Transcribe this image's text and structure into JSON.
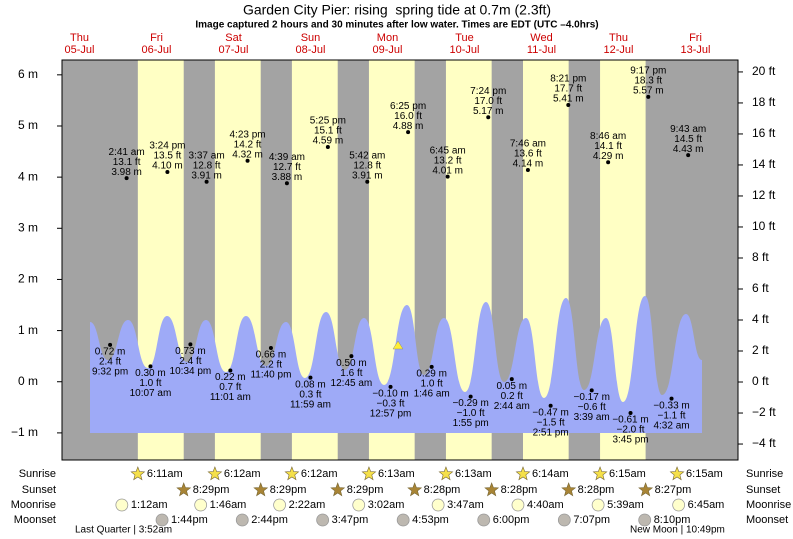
{
  "chart_data": {
    "type": "tide",
    "title": "Garden City Pier: rising  spring tide at 0.7m (2.3ft)",
    "subtitle": "Image captured 2 hours and 30 minutes after low water. Times are EDT (UTC –4.0hrs)",
    "ylim": [
      -1.53,
      6.29
    ],
    "yticks": [
      {
        "value": 6,
        "label": "6 m"
      },
      {
        "value": 5,
        "label": "5 m"
      },
      {
        "value": 4,
        "label": "4 m"
      },
      {
        "value": 3,
        "label": "3 m"
      },
      {
        "value": 2,
        "label": "2 m"
      },
      {
        "value": 1,
        "label": "1 m"
      },
      {
        "value": 0,
        "label": "0 m"
      },
      {
        "value": -1,
        "label": "−1 m"
      }
    ],
    "y2lim": [
      -5.03,
      20.77
    ],
    "y2ticks": [
      {
        "value": 20,
        "label": "20 ft"
      },
      {
        "value": 18,
        "label": "18 ft"
      },
      {
        "value": 16,
        "label": "16 ft"
      },
      {
        "value": 14,
        "label": "14 ft"
      },
      {
        "value": 12,
        "label": "12 ft"
      },
      {
        "value": 10,
        "label": "10 ft"
      },
      {
        "value": 8,
        "label": "8 ft"
      },
      {
        "value": 6,
        "label": "6 ft"
      },
      {
        "value": 4,
        "label": "4 ft"
      },
      {
        "value": 2,
        "label": "2 ft"
      },
      {
        "value": 0,
        "label": "0 ft"
      },
      {
        "value": -2,
        "label": "−2 ft"
      },
      {
        "value": -4,
        "label": "−4 ft"
      }
    ],
    "row_labels": [
      "Sunrise",
      "Sunset",
      "Moonrise",
      "Moonset"
    ],
    "moon_phases": [
      "Last Quarter | 3:52am",
      "New Moon | 10:49pm"
    ],
    "days": [
      {
        "dow": "Thu",
        "date": "05-Jul",
        "tides": [
          {
            "time": "9:32 pm",
            "m": 0.72,
            "m_label": "0.72 m",
            "ft": 2.4,
            "ft_label": "2.4 ft"
          }
        ]
      },
      {
        "dow": "Fri",
        "date": "06-Jul",
        "sunrise": "6:11am",
        "sunset": "8:29pm",
        "moonrise": "1:12am",
        "moonset": "1:44pm",
        "tides": [
          {
            "time": "2:41 am",
            "m": 3.98,
            "m_label": "3.98 m",
            "ft": 13.1,
            "ft_label": "13.1 ft"
          },
          {
            "time": "10:07 am",
            "m": 0.3,
            "m_label": "0.30 m",
            "ft": 1.0,
            "ft_label": "1.0 ft"
          },
          {
            "time": "3:24 pm",
            "m": 4.1,
            "m_label": "4.10 m",
            "ft": 13.5,
            "ft_label": "13.5 ft"
          },
          {
            "time": "10:34 pm",
            "m": 0.73,
            "m_label": "0.73 m",
            "ft": 2.4,
            "ft_label": "2.4 ft"
          }
        ]
      },
      {
        "dow": "Sat",
        "date": "07-Jul",
        "sunrise": "6:12am",
        "sunset": "8:29pm",
        "moonrise": "1:46am",
        "moonset": "2:44pm",
        "tides": [
          {
            "time": "3:37 am",
            "m": 3.91,
            "m_label": "3.91 m",
            "ft": 12.8,
            "ft_label": "12.8 ft"
          },
          {
            "time": "11:01 am",
            "m": 0.22,
            "m_label": "0.22 m",
            "ft": 0.7,
            "ft_label": "0.7 ft"
          },
          {
            "time": "4:23 pm",
            "m": 4.32,
            "m_label": "4.32 m",
            "ft": 14.2,
            "ft_label": "14.2 ft"
          },
          {
            "time": "11:40 pm",
            "m": 0.66,
            "m_label": "0.66 m",
            "ft": 2.2,
            "ft_label": "2.2 ft"
          }
        ]
      },
      {
        "dow": "Sun",
        "date": "08-Jul",
        "sunrise": "6:12am",
        "sunset": "8:29pm",
        "moonrise": "2:22am",
        "moonset": "3:47pm",
        "tides": [
          {
            "time": "4:39 am",
            "m": 3.88,
            "m_label": "3.88 m",
            "ft": 12.7,
            "ft_label": "12.7 ft"
          },
          {
            "time": "11:59 am",
            "m": 0.08,
            "m_label": "0.08 m",
            "ft": 0.3,
            "ft_label": "0.3 ft"
          },
          {
            "time": "5:25 pm",
            "m": 4.59,
            "m_label": "4.59 m",
            "ft": 15.1,
            "ft_label": "15.1 ft"
          }
        ]
      },
      {
        "dow": "Mon",
        "date": "09-Jul",
        "sunrise": "6:13am",
        "sunset": "8:28pm",
        "moonrise": "3:02am",
        "moonset": "4:53pm",
        "tides": [
          {
            "time": "12:45 am",
            "m": 0.5,
            "m_label": "0.50 m",
            "ft": 1.6,
            "ft_label": "1.6 ft"
          },
          {
            "time": "5:42 am",
            "m": 3.91,
            "m_label": "3.91 m",
            "ft": 12.8,
            "ft_label": "12.8 ft"
          },
          {
            "time": "12:57 pm",
            "m": -0.1,
            "m_label": "−0.10 m",
            "ft": -0.3,
            "ft_label": "−0.3 ft"
          },
          {
            "time": "6:25 pm",
            "m": 4.88,
            "m_label": "4.88 m",
            "ft": 16.0,
            "ft_label": "16.0 ft"
          }
        ]
      },
      {
        "dow": "Tue",
        "date": "10-Jul",
        "sunrise": "6:13am",
        "sunset": "8:28pm",
        "moonrise": "3:47am",
        "moonset": "6:00pm",
        "tides": [
          {
            "time": "1:46 am",
            "m": 0.29,
            "m_label": "0.29 m",
            "ft": 1.0,
            "ft_label": "1.0 ft"
          },
          {
            "time": "6:45 am",
            "m": 4.01,
            "m_label": "4.01 m",
            "ft": 13.2,
            "ft_label": "13.2 ft"
          },
          {
            "time": "1:55 pm",
            "m": -0.29,
            "m_label": "−0.29 m",
            "ft": -1.0,
            "ft_label": "−1.0 ft"
          },
          {
            "time": "7:24 pm",
            "m": 5.17,
            "m_label": "5.17 m",
            "ft": 17.0,
            "ft_label": "17.0 ft"
          }
        ]
      },
      {
        "dow": "Wed",
        "date": "11-Jul",
        "sunrise": "6:14am",
        "sunset": "8:28pm",
        "moonrise": "4:40am",
        "moonset": "7:07pm",
        "tides": [
          {
            "time": "2:44 am",
            "m": 0.05,
            "m_label": "0.05 m",
            "ft": 0.2,
            "ft_label": "0.2 ft"
          },
          {
            "time": "7:46 am",
            "m": 4.14,
            "m_label": "4.14 m",
            "ft": 13.6,
            "ft_label": "13.6 ft"
          },
          {
            "time": "2:51 pm",
            "m": -0.47,
            "m_label": "−0.47 m",
            "ft": -1.5,
            "ft_label": "−1.5 ft"
          },
          {
            "time": "8:21 pm",
            "m": 5.41,
            "m_label": "5.41 m",
            "ft": 17.7,
            "ft_label": "17.7 ft"
          }
        ]
      },
      {
        "dow": "Thu",
        "date": "12-Jul",
        "sunrise": "6:15am",
        "sunset": "8:27pm",
        "moonrise": "5:39am",
        "moonset": "8:10pm",
        "tides": [
          {
            "time": "3:39 am",
            "m": -0.17,
            "m_label": "−0.17 m",
            "ft": -0.6,
            "ft_label": "−0.6 ft"
          },
          {
            "time": "8:46 am",
            "m": 4.29,
            "m_label": "4.29 m",
            "ft": 14.1,
            "ft_label": "14.1 ft"
          },
          {
            "time": "3:45 pm",
            "m": -0.61,
            "m_label": "−0.61 m",
            "ft": -2.0,
            "ft_label": "−2.0 ft"
          },
          {
            "time": "9:17 pm",
            "m": 5.57,
            "m_label": "5.57 m",
            "ft": 18.3,
            "ft_label": "18.3 ft"
          }
        ]
      },
      {
        "dow": "Fri",
        "date": "13-Jul",
        "sunrise": "6:15am",
        "moonrise": "6:45am",
        "tides": [
          {
            "time": "4:32 am",
            "m": -0.33,
            "m_label": "−0.33 m",
            "ft": -1.1,
            "ft_label": "−1.1 ft"
          },
          {
            "time": "9:43 am",
            "m": 4.43,
            "m_label": "4.43 m",
            "ft": 14.5,
            "ft_label": "14.5 ft"
          }
        ]
      }
    ]
  }
}
